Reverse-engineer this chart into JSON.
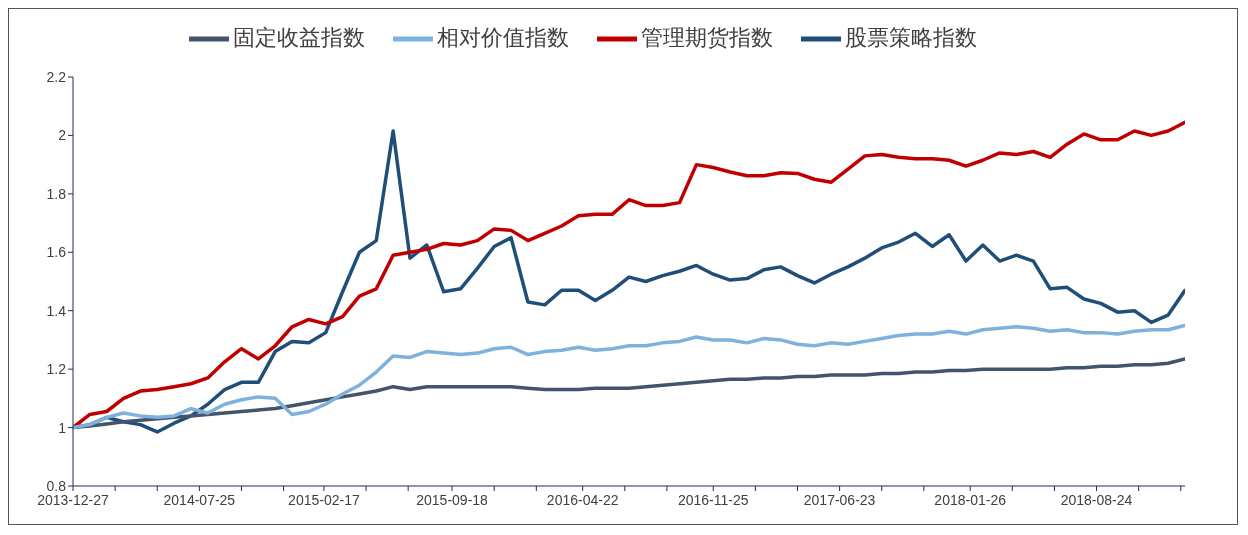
{
  "chart_data": {
    "type": "line",
    "legend": "top",
    "line_style": "solid",
    "marker": "none",
    "x": [
      "2013-12-27",
      "2014-01-24",
      "2014-02-21",
      "2014-03-21",
      "2014-04-18",
      "2014-05-16",
      "2014-06-13",
      "2014-07-11",
      "2014-08-08",
      "2014-09-05",
      "2014-10-03",
      "2014-10-31",
      "2014-11-28",
      "2014-12-26",
      "2015-01-23",
      "2015-02-20",
      "2015-03-20",
      "2015-04-17",
      "2015-05-15",
      "2015-06-12",
      "2015-07-10",
      "2015-08-07",
      "2015-09-04",
      "2015-10-02",
      "2015-10-30",
      "2015-11-27",
      "2015-12-25",
      "2016-01-22",
      "2016-02-19",
      "2016-03-18",
      "2016-04-15",
      "2016-05-13",
      "2016-06-10",
      "2016-07-08",
      "2016-08-05",
      "2016-09-02",
      "2016-09-30",
      "2016-10-28",
      "2016-11-25",
      "2016-12-23",
      "2017-01-20",
      "2017-02-17",
      "2017-03-17",
      "2017-04-14",
      "2017-05-12",
      "2017-06-09",
      "2017-07-07",
      "2017-08-04",
      "2017-09-01",
      "2017-09-29",
      "2017-10-27",
      "2017-11-24",
      "2017-12-22",
      "2018-01-19",
      "2018-02-16",
      "2018-03-16",
      "2018-04-13",
      "2018-05-11",
      "2018-06-08",
      "2018-07-06",
      "2018-08-03",
      "2018-08-31",
      "2018-09-28",
      "2018-10-26",
      "2018-11-23",
      "2018-12-21",
      "2019-01-18"
    ],
    "series": [
      {
        "name": "股票策略指数",
        "color": "#1f4e79",
        "values": [
          1.0,
          1.01,
          1.035,
          1.02,
          1.01,
          0.985,
          1.015,
          1.04,
          1.08,
          1.13,
          1.155,
          1.155,
          1.26,
          1.295,
          1.29,
          1.325,
          1.465,
          1.6,
          1.64,
          2.015,
          1.58,
          1.625,
          1.465,
          1.475,
          1.545,
          1.62,
          1.65,
          1.43,
          1.42,
          1.47,
          1.47,
          1.435,
          1.47,
          1.515,
          1.5,
          1.52,
          1.535,
          1.555,
          1.525,
          1.505,
          1.51,
          1.54,
          1.55,
          1.52,
          1.495,
          1.525,
          1.55,
          1.58,
          1.615,
          1.635,
          1.665,
          1.62,
          1.66,
          1.57,
          1.625,
          1.57,
          1.59,
          1.57,
          1.475,
          1.48,
          1.44,
          1.425,
          1.395,
          1.4,
          1.36,
          1.385,
          1.47
        ]
      },
      {
        "name": "固定收益指数",
        "color": "#44546a",
        "values": [
          1.0,
          1.005,
          1.012,
          1.02,
          1.025,
          1.03,
          1.035,
          1.04,
          1.045,
          1.05,
          1.055,
          1.06,
          1.065,
          1.075,
          1.085,
          1.095,
          1.105,
          1.115,
          1.125,
          1.14,
          1.13,
          1.14,
          1.14,
          1.14,
          1.14,
          1.14,
          1.14,
          1.135,
          1.13,
          1.13,
          1.13,
          1.135,
          1.135,
          1.135,
          1.14,
          1.145,
          1.15,
          1.155,
          1.16,
          1.165,
          1.165,
          1.17,
          1.17,
          1.175,
          1.175,
          1.18,
          1.18,
          1.18,
          1.185,
          1.185,
          1.19,
          1.19,
          1.195,
          1.195,
          1.2,
          1.2,
          1.2,
          1.2,
          1.2,
          1.205,
          1.205,
          1.21,
          1.21,
          1.215,
          1.215,
          1.22,
          1.235
        ]
      },
      {
        "name": "管理期货指数",
        "color": "#c00000",
        "values": [
          1.0,
          1.045,
          1.055,
          1.1,
          1.125,
          1.13,
          1.14,
          1.15,
          1.17,
          1.225,
          1.27,
          1.235,
          1.28,
          1.345,
          1.37,
          1.355,
          1.38,
          1.45,
          1.475,
          1.59,
          1.6,
          1.61,
          1.63,
          1.625,
          1.64,
          1.68,
          1.675,
          1.64,
          1.665,
          1.69,
          1.725,
          1.73,
          1.73,
          1.78,
          1.76,
          1.76,
          1.77,
          1.9,
          1.89,
          1.875,
          1.862,
          1.862,
          1.872,
          1.87,
          1.85,
          1.84,
          1.885,
          1.93,
          1.935,
          1.925,
          1.92,
          1.92,
          1.915,
          1.895,
          1.915,
          1.94,
          1.935,
          1.945,
          1.925,
          1.97,
          2.005,
          1.985,
          1.985,
          2.015,
          2.0,
          2.015,
          2.045
        ]
      },
      {
        "name": "相对价值指数",
        "color": "#7eb1dd",
        "values": [
          1.0,
          1.01,
          1.035,
          1.05,
          1.04,
          1.035,
          1.04,
          1.065,
          1.05,
          1.08,
          1.095,
          1.105,
          1.1,
          1.045,
          1.055,
          1.08,
          1.115,
          1.145,
          1.19,
          1.245,
          1.24,
          1.26,
          1.255,
          1.25,
          1.255,
          1.27,
          1.275,
          1.25,
          1.26,
          1.265,
          1.275,
          1.265,
          1.27,
          1.28,
          1.28,
          1.29,
          1.295,
          1.31,
          1.3,
          1.3,
          1.29,
          1.305,
          1.3,
          1.285,
          1.28,
          1.29,
          1.285,
          1.295,
          1.305,
          1.315,
          1.32,
          1.32,
          1.33,
          1.32,
          1.335,
          1.34,
          1.345,
          1.34,
          1.33,
          1.335,
          1.325,
          1.325,
          1.32,
          1.33,
          1.335,
          1.335,
          1.35
        ]
      }
    ],
    "xlim": [
      "2013-12-27",
      "2019-01-18"
    ],
    "xticks": [
      "2013-12-27",
      {
        "value": "2014-03-07",
        "label": null
      },
      {
        "value": "2014-05-16",
        "label": null
      },
      "2014-07-25",
      {
        "value": "2014-10-03",
        "label": null
      },
      {
        "value": "2014-12-12",
        "label": null
      },
      "2015-02-17",
      {
        "value": "2015-04-28",
        "label": null
      },
      {
        "value": "2015-07-07",
        "label": null
      },
      "2015-09-18",
      {
        "value": "2015-11-27",
        "label": null
      },
      {
        "value": "2016-02-05",
        "label": null
      },
      "2016-04-22",
      {
        "value": "2016-07-01",
        "label": null
      },
      {
        "value": "2016-09-09",
        "label": null
      },
      "2016-11-25",
      {
        "value": "2017-02-03",
        "label": null
      },
      {
        "value": "2017-04-14",
        "label": null
      },
      "2017-06-23",
      {
        "value": "2017-09-01",
        "label": null
      },
      {
        "value": "2017-11-10",
        "label": null
      },
      "2018-01-26",
      {
        "value": "2018-04-06",
        "label": null
      },
      {
        "value": "2018-06-15",
        "label": null
      },
      "2018-08-24",
      {
        "value": "2018-11-02",
        "label": null
      },
      {
        "value": "2019-01-11",
        "label": null
      }
    ],
    "ylim": [
      0.8,
      2.2
    ],
    "yticks": [
      0.8,
      1,
      1.2,
      1.4,
      1.6,
      1.8,
      2,
      2.2
    ]
  }
}
